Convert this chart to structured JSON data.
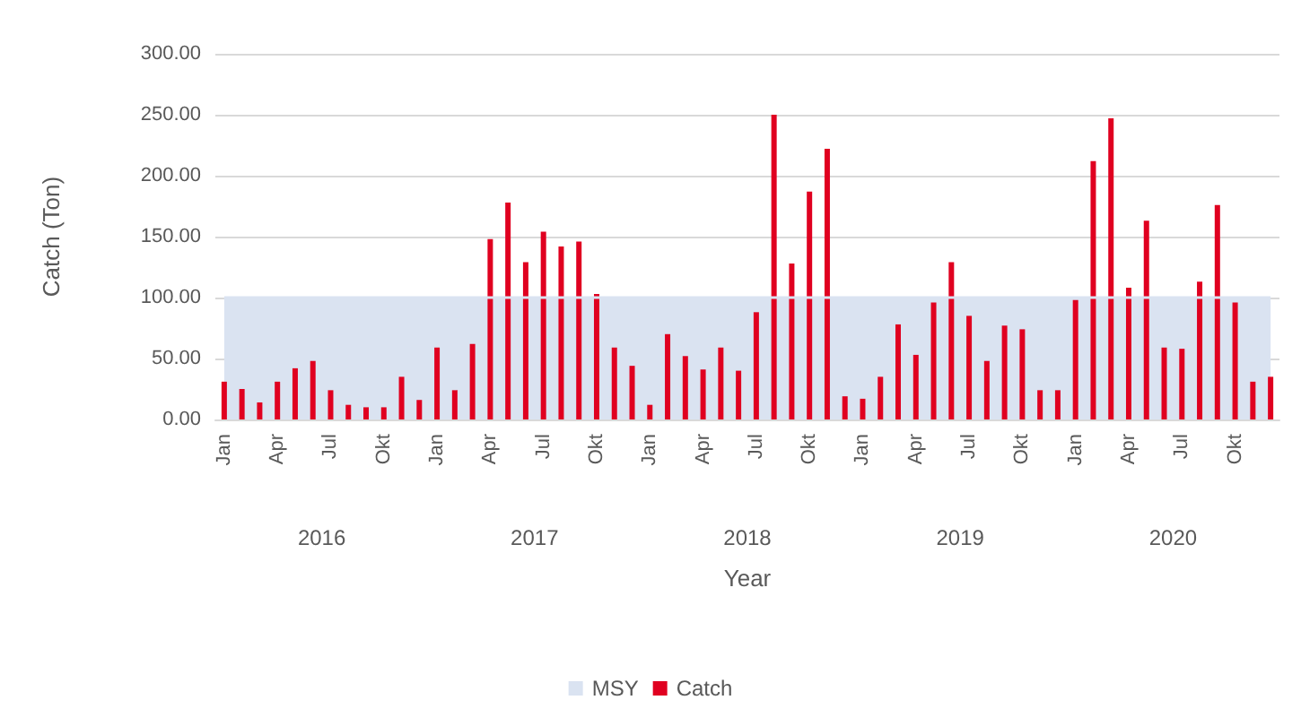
{
  "chart_data": {
    "type": "bar",
    "xlabel": "Year",
    "ylabel": "Catch (Ton)",
    "categories": [
      "Jan",
      null,
      null,
      "Apr",
      null,
      null,
      "Jul",
      null,
      null,
      "Okt",
      null,
      null,
      "Jan",
      null,
      null,
      "Apr",
      null,
      null,
      "Jul",
      null,
      null,
      "Okt",
      null,
      null,
      "Jan",
      null,
      null,
      "Apr",
      null,
      null,
      "Jul",
      null,
      null,
      "Okt",
      null,
      null,
      "Jan",
      null,
      null,
      "Apr",
      null,
      null,
      "Jul",
      null,
      null,
      "Okt",
      null,
      null,
      "Jan",
      null,
      null,
      "Apr",
      null,
      null,
      "Jul",
      null,
      null,
      "Okt",
      null,
      null
    ],
    "annotations": [
      "2016",
      "2017",
      "2018",
      "2019",
      "2020"
    ],
    "series": [
      {
        "name": "MSY",
        "type": "area",
        "color": "#dae3f1",
        "values": [
          100,
          100,
          100,
          100,
          100,
          100,
          100,
          100,
          100,
          100,
          100,
          100,
          100,
          100,
          100,
          100,
          100,
          100,
          100,
          100,
          100,
          100,
          100,
          100,
          100,
          100,
          100,
          100,
          100,
          100,
          100,
          100,
          100,
          100,
          100,
          100,
          100,
          100,
          100,
          100,
          100,
          100,
          100,
          100,
          100,
          100,
          100,
          100,
          100,
          100,
          100,
          100,
          100,
          100,
          100,
          100,
          100,
          100,
          100,
          100
        ]
      },
      {
        "name": "Catch",
        "color": "#e00020",
        "values": [
          31,
          25,
          14,
          31,
          42,
          48,
          24,
          12,
          10,
          10,
          35,
          16,
          59,
          24,
          62,
          148,
          178,
          129,
          154,
          142,
          146,
          103,
          59,
          44,
          12,
          70,
          52,
          41,
          59,
          40,
          88,
          250,
          128,
          187,
          222,
          19,
          17,
          35,
          78,
          53,
          96,
          129,
          85,
          48,
          77,
          74,
          24,
          24,
          98,
          212,
          247,
          108,
          163,
          59,
          58,
          113,
          176,
          96,
          31,
          35
        ]
      }
    ],
    "ylim": [
      0,
      300
    ],
    "yticks": [
      {
        "value": 0,
        "label": "0.00"
      },
      {
        "value": 50,
        "label": "50.00"
      },
      {
        "value": 100,
        "label": "100.00"
      },
      {
        "value": 150,
        "label": "150.00"
      },
      {
        "value": 200,
        "label": "200.00"
      },
      {
        "value": 250,
        "label": "250.00"
      },
      {
        "value": 300,
        "label": "300.00"
      }
    ],
    "grid": "y",
    "legend": "bottom"
  }
}
